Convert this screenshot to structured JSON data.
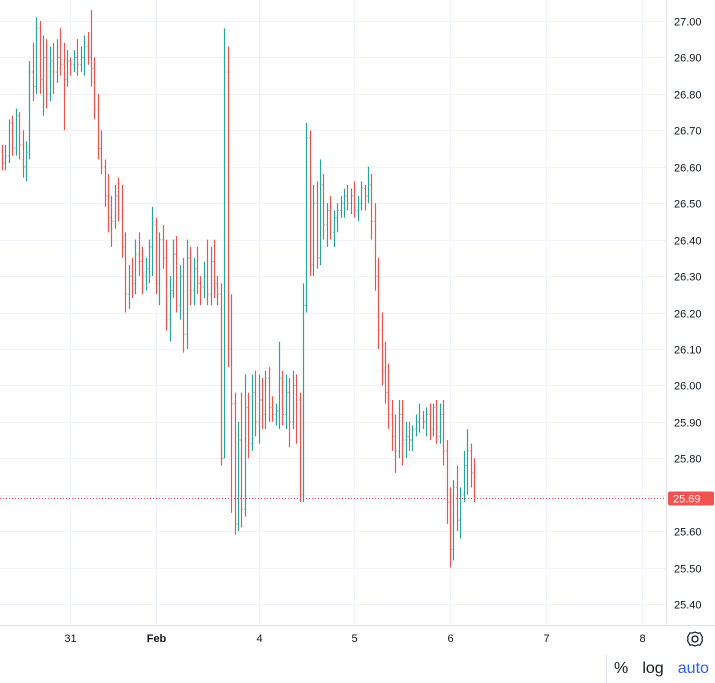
{
  "chart_data": {
    "type": "ohlc",
    "price_axis": {
      "ticks": [
        "27.00",
        "26.90",
        "26.80",
        "26.70",
        "26.60",
        "26.50",
        "26.40",
        "26.30",
        "26.20",
        "26.10",
        "26.00",
        "25.90",
        "25.80",
        "25.70",
        "25.60",
        "25.50",
        "25.40"
      ],
      "ylim": [
        25.35,
        27.03
      ]
    },
    "time_axis": {
      "ticks": [
        {
          "label": "31",
          "bar": 20,
          "month": false
        },
        {
          "label": "Feb",
          "bar": 45,
          "month": true
        },
        {
          "label": "4",
          "bar": 75,
          "month": false
        },
        {
          "label": "5",
          "bar": 103,
          "month": false
        },
        {
          "label": "6",
          "bar": 131,
          "month": false
        },
        {
          "label": "7",
          "bar": 159,
          "month": false
        },
        {
          "label": "8",
          "bar": 187,
          "month": false
        }
      ]
    },
    "last_price": {
      "value": "25.69",
      "color": "#ef5350"
    },
    "colors": {
      "up": "#26a69a",
      "down": "#ef5350",
      "grid": "#f0f3fa"
    },
    "bars": [
      [
        26.64,
        26.66,
        26.59,
        26.61
      ],
      [
        26.61,
        26.66,
        26.59,
        26.63
      ],
      [
        26.63,
        26.73,
        26.61,
        26.72
      ],
      [
        26.72,
        26.74,
        26.63,
        26.65
      ],
      [
        26.65,
        26.76,
        26.63,
        26.74
      ],
      [
        26.74,
        26.75,
        26.62,
        26.66
      ],
      [
        26.66,
        26.7,
        26.57,
        26.6
      ],
      [
        26.6,
        26.67,
        26.56,
        26.64
      ],
      [
        26.64,
        26.89,
        26.62,
        26.86
      ],
      [
        26.86,
        26.94,
        26.78,
        26.82
      ],
      [
        26.82,
        27.01,
        26.8,
        26.98
      ],
      [
        26.98,
        27.0,
        26.8,
        26.84
      ],
      [
        26.84,
        26.96,
        26.74,
        26.9
      ],
      [
        26.9,
        26.95,
        26.76,
        26.8
      ],
      [
        26.8,
        26.93,
        26.78,
        26.89
      ],
      [
        26.89,
        26.94,
        26.8,
        26.86
      ],
      [
        26.86,
        26.95,
        26.83,
        26.9
      ],
      [
        26.9,
        26.98,
        26.85,
        26.88
      ],
      [
        26.88,
        26.94,
        26.7,
        26.84
      ],
      [
        26.84,
        26.92,
        26.82,
        26.89
      ],
      [
        26.89,
        26.9,
        26.85,
        26.88
      ],
      [
        26.88,
        26.92,
        26.86,
        26.9
      ],
      [
        26.9,
        26.95,
        26.85,
        26.88
      ],
      [
        26.88,
        26.93,
        26.86,
        26.9
      ],
      [
        26.9,
        26.96,
        26.85,
        26.93
      ],
      [
        26.93,
        26.97,
        26.88,
        26.9
      ],
      [
        26.9,
        27.03,
        26.82,
        26.87
      ],
      [
        26.87,
        26.9,
        26.73,
        26.76
      ],
      [
        26.76,
        26.8,
        26.62,
        26.65
      ],
      [
        26.65,
        26.7,
        26.58,
        26.6
      ],
      [
        26.6,
        26.62,
        26.49,
        26.52
      ],
      [
        26.52,
        26.58,
        26.42,
        26.46
      ],
      [
        26.46,
        26.52,
        26.38,
        26.45
      ],
      [
        26.45,
        26.55,
        26.43,
        26.52
      ],
      [
        26.52,
        26.57,
        26.45,
        26.48
      ],
      [
        26.48,
        26.55,
        26.35,
        26.38
      ],
      [
        26.38,
        26.42,
        26.2,
        26.25
      ],
      [
        26.25,
        26.33,
        26.21,
        26.3
      ],
      [
        26.3,
        26.35,
        26.24,
        26.28
      ],
      [
        26.28,
        26.4,
        26.25,
        26.36
      ],
      [
        26.36,
        26.42,
        26.3,
        26.34
      ],
      [
        26.34,
        26.38,
        26.25,
        26.3
      ],
      [
        26.3,
        26.35,
        26.26,
        26.32
      ],
      [
        26.32,
        26.4,
        26.28,
        26.38
      ],
      [
        26.38,
        26.49,
        26.3,
        26.44
      ],
      [
        26.44,
        26.46,
        26.25,
        26.28
      ],
      [
        26.28,
        26.42,
        26.22,
        26.4
      ],
      [
        26.4,
        26.44,
        26.32,
        26.35
      ],
      [
        26.35,
        26.4,
        26.15,
        26.18
      ],
      [
        26.18,
        26.3,
        26.12,
        26.26
      ],
      [
        26.26,
        26.4,
        26.24,
        26.36
      ],
      [
        26.36,
        26.41,
        26.2,
        26.22
      ],
      [
        26.22,
        26.33,
        26.18,
        26.3
      ],
      [
        26.3,
        26.35,
        26.09,
        26.14
      ],
      [
        26.14,
        26.4,
        26.1,
        26.35
      ],
      [
        26.35,
        26.38,
        26.22,
        26.26
      ],
      [
        26.26,
        26.35,
        26.22,
        26.32
      ],
      [
        26.32,
        26.38,
        26.25,
        26.28
      ],
      [
        26.28,
        26.3,
        26.22,
        26.27
      ],
      [
        26.27,
        26.34,
        26.24,
        26.3
      ],
      [
        26.3,
        26.4,
        26.22,
        26.25
      ],
      [
        26.25,
        26.38,
        26.22,
        26.34
      ],
      [
        26.34,
        26.4,
        26.24,
        26.28
      ],
      [
        26.28,
        26.3,
        26.22,
        26.25
      ],
      [
        26.25,
        26.28,
        25.78,
        25.8
      ],
      [
        25.8,
        26.98,
        25.8,
        26.86
      ],
      [
        26.86,
        26.93,
        26.05,
        26.1
      ],
      [
        26.1,
        26.25,
        25.65,
        25.95
      ],
      [
        25.95,
        25.98,
        25.59,
        25.62
      ],
      [
        25.62,
        25.9,
        25.6,
        25.85
      ],
      [
        25.85,
        25.98,
        25.61,
        25.66
      ],
      [
        25.66,
        26.03,
        25.64,
        25.94
      ],
      [
        25.94,
        25.98,
        25.8,
        25.84
      ],
      [
        25.84,
        26.03,
        25.82,
        25.98
      ],
      [
        25.98,
        26.04,
        25.86,
        25.9
      ],
      [
        25.9,
        26.03,
        25.84,
        25.96
      ],
      [
        25.96,
        26.02,
        25.88,
        25.92
      ],
      [
        25.92,
        26.04,
        25.88,
        26.02
      ],
      [
        26.02,
        26.05,
        25.9,
        25.94
      ],
      [
        25.94,
        25.97,
        25.9,
        25.92
      ],
      [
        25.92,
        25.95,
        25.89,
        25.93
      ],
      [
        25.93,
        26.12,
        25.88,
        26.02
      ],
      [
        26.02,
        26.04,
        25.89,
        25.92
      ],
      [
        25.92,
        26.03,
        25.88,
        25.98
      ],
      [
        25.98,
        26.02,
        25.83,
        25.9
      ],
      [
        25.9,
        26.04,
        25.88,
        26.0
      ],
      [
        26.0,
        26.03,
        25.84,
        25.96
      ],
      [
        25.96,
        25.98,
        25.68,
        25.7
      ],
      [
        25.7,
        26.28,
        25.68,
        26.22
      ],
      [
        26.22,
        26.72,
        26.2,
        26.68
      ],
      [
        26.68,
        26.7,
        26.3,
        26.33
      ],
      [
        26.33,
        26.55,
        26.3,
        26.5
      ],
      [
        26.5,
        26.56,
        26.32,
        26.35
      ],
      [
        26.35,
        26.62,
        26.33,
        26.55
      ],
      [
        26.55,
        26.58,
        26.4,
        26.44
      ],
      [
        26.44,
        26.5,
        26.38,
        26.48
      ],
      [
        26.48,
        26.52,
        26.4,
        26.42
      ],
      [
        26.42,
        26.48,
        26.38,
        26.46
      ],
      [
        26.46,
        26.5,
        26.42,
        26.48
      ],
      [
        26.48,
        26.52,
        26.46,
        26.5
      ],
      [
        26.5,
        26.54,
        26.46,
        26.52
      ],
      [
        26.52,
        26.55,
        26.48,
        26.5
      ],
      [
        26.5,
        26.54,
        26.47,
        26.52
      ],
      [
        26.52,
        26.56,
        26.46,
        26.48
      ],
      [
        26.48,
        26.52,
        26.45,
        26.5
      ],
      [
        26.5,
        26.56,
        26.48,
        26.54
      ],
      [
        26.54,
        26.55,
        26.48,
        26.52
      ],
      [
        26.52,
        26.6,
        26.5,
        26.55
      ],
      [
        26.55,
        26.58,
        26.4,
        26.45
      ],
      [
        26.45,
        26.5,
        26.26,
        26.3
      ],
      [
        26.3,
        26.35,
        26.1,
        26.15
      ],
      [
        26.15,
        26.2,
        26.0,
        26.04
      ],
      [
        26.04,
        26.12,
        25.95,
        25.98
      ],
      [
        25.98,
        26.06,
        25.88,
        25.92
      ],
      [
        25.92,
        25.96,
        25.82,
        25.86
      ],
      [
        25.86,
        25.92,
        25.76,
        25.82
      ],
      [
        25.82,
        25.96,
        25.8,
        25.92
      ],
      [
        25.92,
        25.96,
        25.78,
        25.85
      ],
      [
        25.85,
        25.9,
        25.8,
        25.86
      ],
      [
        25.86,
        25.9,
        25.82,
        25.85
      ],
      [
        25.85,
        25.89,
        25.82,
        25.88
      ],
      [
        25.88,
        25.92,
        25.86,
        25.9
      ],
      [
        25.9,
        25.95,
        25.87,
        25.91
      ],
      [
        25.91,
        25.93,
        25.88,
        25.9
      ],
      [
        25.9,
        25.94,
        25.86,
        25.92
      ],
      [
        25.92,
        25.95,
        25.85,
        25.88
      ],
      [
        25.88,
        25.95,
        25.86,
        25.94
      ],
      [
        25.94,
        25.96,
        25.84,
        25.86
      ],
      [
        25.86,
        25.95,
        25.84,
        25.92
      ],
      [
        25.92,
        25.96,
        25.78,
        25.82
      ],
      [
        25.82,
        25.85,
        25.62,
        25.68
      ],
      [
        25.68,
        25.72,
        25.5,
        25.55
      ],
      [
        25.55,
        25.74,
        25.52,
        25.72
      ],
      [
        25.72,
        25.78,
        25.6,
        25.63
      ],
      [
        25.63,
        25.72,
        25.58,
        25.7
      ],
      [
        25.7,
        25.82,
        25.68,
        25.78
      ],
      [
        25.78,
        25.88,
        25.7,
        25.82
      ],
      [
        25.82,
        25.84,
        25.72,
        25.76
      ],
      [
        25.76,
        25.8,
        25.68,
        25.69
      ]
    ]
  },
  "toolbar": {
    "percent_label": "%",
    "log_label": "log",
    "auto_label": "auto"
  },
  "icons": {
    "settings": "settings-gear-icon"
  }
}
